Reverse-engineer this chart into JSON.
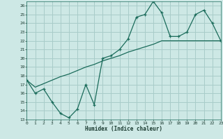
{
  "title": "",
  "xlabel": "Humidex (Indice chaleur)",
  "background_color": "#cde8e5",
  "grid_color": "#a8ccc9",
  "line_color": "#1a6b5a",
  "x_data": [
    0,
    1,
    2,
    3,
    4,
    5,
    6,
    7,
    8,
    9,
    10,
    11,
    12,
    13,
    14,
    15,
    16,
    17,
    18,
    19,
    20,
    21,
    22,
    23
  ],
  "y_data1": [
    17.5,
    16.0,
    16.5,
    15.0,
    13.7,
    13.2,
    14.2,
    17.0,
    14.7,
    20.0,
    20.3,
    21.0,
    22.2,
    24.7,
    25.0,
    26.5,
    25.2,
    22.5,
    22.5,
    23.0,
    25.0,
    25.5,
    24.0,
    22.0
  ],
  "y_data2": [
    17.5,
    16.7,
    17.1,
    17.5,
    17.9,
    18.2,
    18.6,
    19.0,
    19.3,
    19.7,
    20.0,
    20.3,
    20.7,
    21.0,
    21.3,
    21.6,
    22.0,
    22.0,
    22.0,
    22.0,
    22.0,
    22.0,
    22.0,
    22.0
  ],
  "xlim": [
    0,
    23
  ],
  "ylim": [
    13,
    26.5
  ],
  "yticks": [
    13,
    14,
    15,
    16,
    17,
    18,
    19,
    20,
    21,
    22,
    23,
    24,
    25,
    26
  ],
  "xticks": [
    0,
    1,
    2,
    3,
    4,
    5,
    6,
    7,
    8,
    9,
    10,
    11,
    12,
    13,
    14,
    15,
    16,
    17,
    18,
    19,
    20,
    21,
    22,
    23
  ]
}
